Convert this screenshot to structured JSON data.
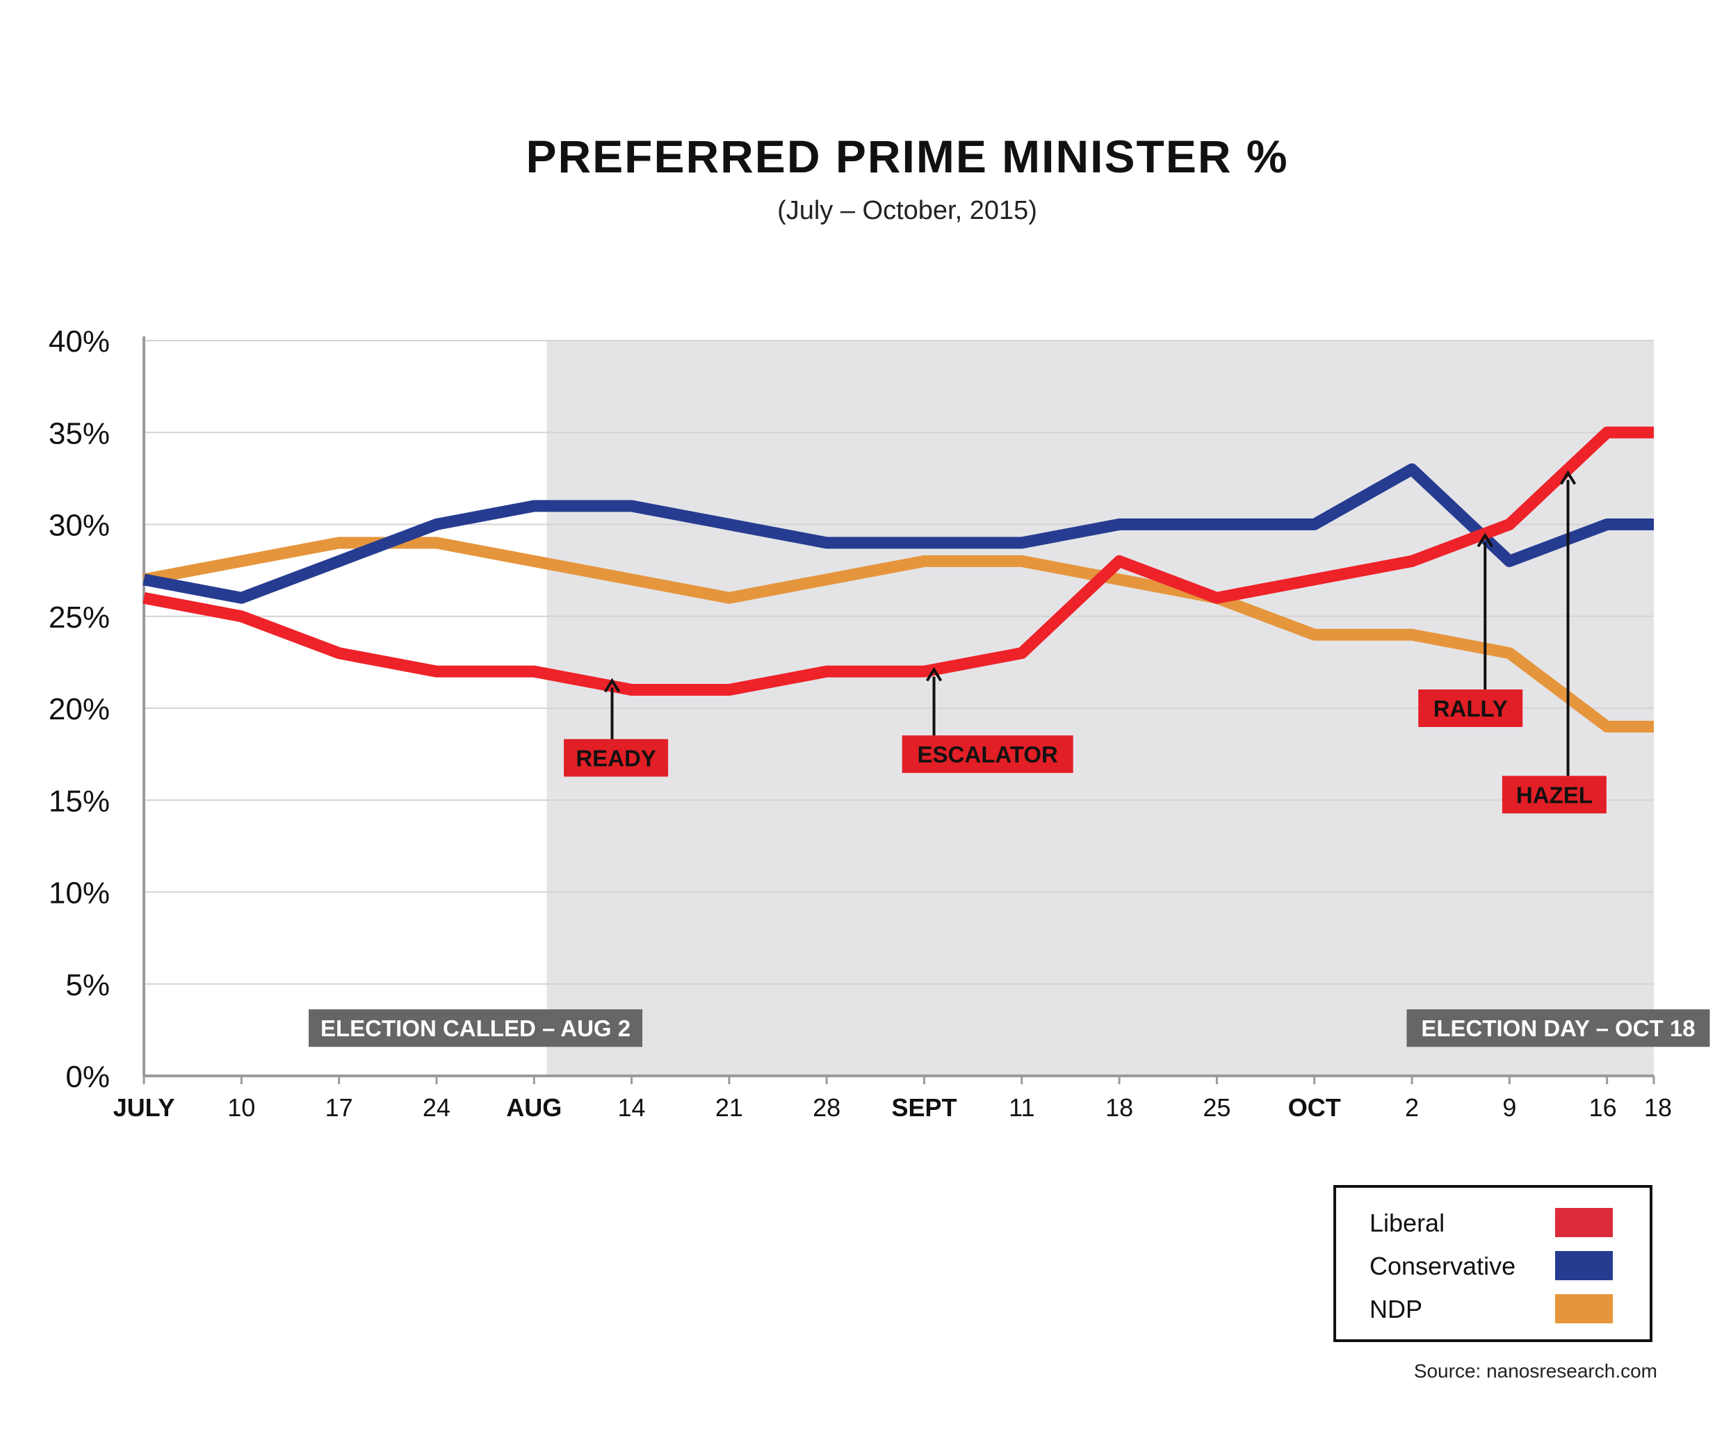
{
  "colors": {
    "liberal": "#ee2229",
    "conservative": "#263c91",
    "ndp": "#e5963d",
    "campaign_shade": "#e4e4e7",
    "note_box": "#666666",
    "annotation_box": "#e21f26",
    "legend_liberal": "#dc2b3a",
    "legend_conservative": "#263c91",
    "legend_ndp": "#e5963d"
  },
  "chart_data": {
    "type": "line",
    "title": "PREFERRED PRIME MINISTER %",
    "subtitle": "(July – October, 2015)",
    "xlabel": "",
    "ylabel": "",
    "ylim": [
      0,
      40
    ],
    "xlim": [
      0,
      15.48
    ],
    "yticks": [
      0,
      5,
      10,
      15,
      20,
      25,
      30,
      35,
      40
    ],
    "ytick_labels": [
      "0%",
      "5%",
      "10%",
      "15%",
      "20%",
      "25%",
      "30%",
      "35%",
      "40%"
    ],
    "xticks": [
      {
        "pos": 0,
        "label": "JULY",
        "bold": true
      },
      {
        "pos": 1,
        "label": "10",
        "bold": false
      },
      {
        "pos": 2,
        "label": "17",
        "bold": false
      },
      {
        "pos": 3,
        "label": "24",
        "bold": false
      },
      {
        "pos": 4,
        "label": "AUG",
        "bold": true
      },
      {
        "pos": 5,
        "label": "14",
        "bold": false
      },
      {
        "pos": 6,
        "label": "21",
        "bold": false
      },
      {
        "pos": 7,
        "label": "28",
        "bold": false
      },
      {
        "pos": 8,
        "label": "SEPT",
        "bold": true
      },
      {
        "pos": 9,
        "label": "11",
        "bold": false
      },
      {
        "pos": 10,
        "label": "18",
        "bold": false
      },
      {
        "pos": 11,
        "label": "25",
        "bold": false
      },
      {
        "pos": 12,
        "label": "OCT",
        "bold": true
      },
      {
        "pos": 13,
        "label": "2",
        "bold": false
      },
      {
        "pos": 14,
        "label": "9",
        "bold": false
      },
      {
        "pos": 15,
        "label": "16",
        "bold": false
      },
      {
        "pos": 15.48,
        "label": "18",
        "bold": false
      }
    ],
    "grid": true,
    "campaign_period": {
      "start": 4.13,
      "end": 15.48
    },
    "series": [
      {
        "name": "Liberal",
        "color_key": "liberal",
        "points": [
          [
            0,
            26
          ],
          [
            1,
            25
          ],
          [
            2,
            23
          ],
          [
            3,
            22
          ],
          [
            4,
            22
          ],
          [
            5,
            21
          ],
          [
            6,
            21
          ],
          [
            7,
            22
          ],
          [
            8,
            22
          ],
          [
            9,
            23
          ],
          [
            10,
            28
          ],
          [
            11,
            26
          ],
          [
            12,
            27
          ],
          [
            13,
            28
          ],
          [
            14,
            30
          ],
          [
            15,
            35
          ],
          [
            15.48,
            35
          ]
        ]
      },
      {
        "name": "Conservative",
        "color_key": "conservative",
        "points": [
          [
            0,
            27
          ],
          [
            1,
            26
          ],
          [
            2,
            28
          ],
          [
            3,
            30
          ],
          [
            4,
            31
          ],
          [
            5,
            31
          ],
          [
            6,
            30
          ],
          [
            7,
            29
          ],
          [
            8,
            29
          ],
          [
            9,
            29
          ],
          [
            10,
            30
          ],
          [
            11,
            30
          ],
          [
            12,
            30
          ],
          [
            13,
            33
          ],
          [
            14,
            28
          ],
          [
            15,
            30
          ],
          [
            15.48,
            30
          ]
        ]
      },
      {
        "name": "NDP",
        "color_key": "ndp",
        "points": [
          [
            0,
            27
          ],
          [
            2,
            29
          ],
          [
            3,
            29
          ],
          [
            4,
            28
          ],
          [
            5,
            27
          ],
          [
            6,
            26
          ],
          [
            7,
            27
          ],
          [
            8,
            28
          ],
          [
            9,
            28
          ],
          [
            10,
            27
          ],
          [
            11,
            26
          ],
          [
            12,
            24
          ],
          [
            13,
            24
          ],
          [
            14,
            23
          ],
          [
            15,
            19
          ],
          [
            15.48,
            19
          ]
        ]
      }
    ],
    "notes": [
      {
        "text": "ELECTION CALLED – AUG 2",
        "x": 3.4,
        "y": 2.6
      },
      {
        "text": "ELECTION DAY – OCT 18",
        "x": 14.5,
        "y": 2.6
      }
    ],
    "annotations": [
      {
        "text": "READY",
        "arrow_x": 4.8,
        "arrow_top": 21.5,
        "arrow_bottom": 18.0,
        "label_x": 4.84,
        "label_y": 17.3
      },
      {
        "text": "ESCALATOR",
        "arrow_x": 8.1,
        "arrow_top": 22.1,
        "arrow_bottom": 18.2,
        "label_x": 8.65,
        "label_y": 17.5
      },
      {
        "text": "RALLY",
        "arrow_x": 13.75,
        "arrow_top": 29.4,
        "arrow_bottom": 20.8,
        "label_x": 13.6,
        "label_y": 20.0
      },
      {
        "text": "HAZEL",
        "arrow_x": 14.6,
        "arrow_top": 32.8,
        "arrow_bottom": 15.9,
        "label_x": 14.46,
        "label_y": 15.3
      }
    ],
    "legend": {
      "position": "bottom-right",
      "entries": [
        {
          "label": "Liberal",
          "color_key": "legend_liberal"
        },
        {
          "label": "Conservative",
          "color_key": "legend_conservative"
        },
        {
          "label": "NDP",
          "color_key": "legend_ndp"
        }
      ]
    },
    "source": "Source: nanosresearch.com"
  }
}
